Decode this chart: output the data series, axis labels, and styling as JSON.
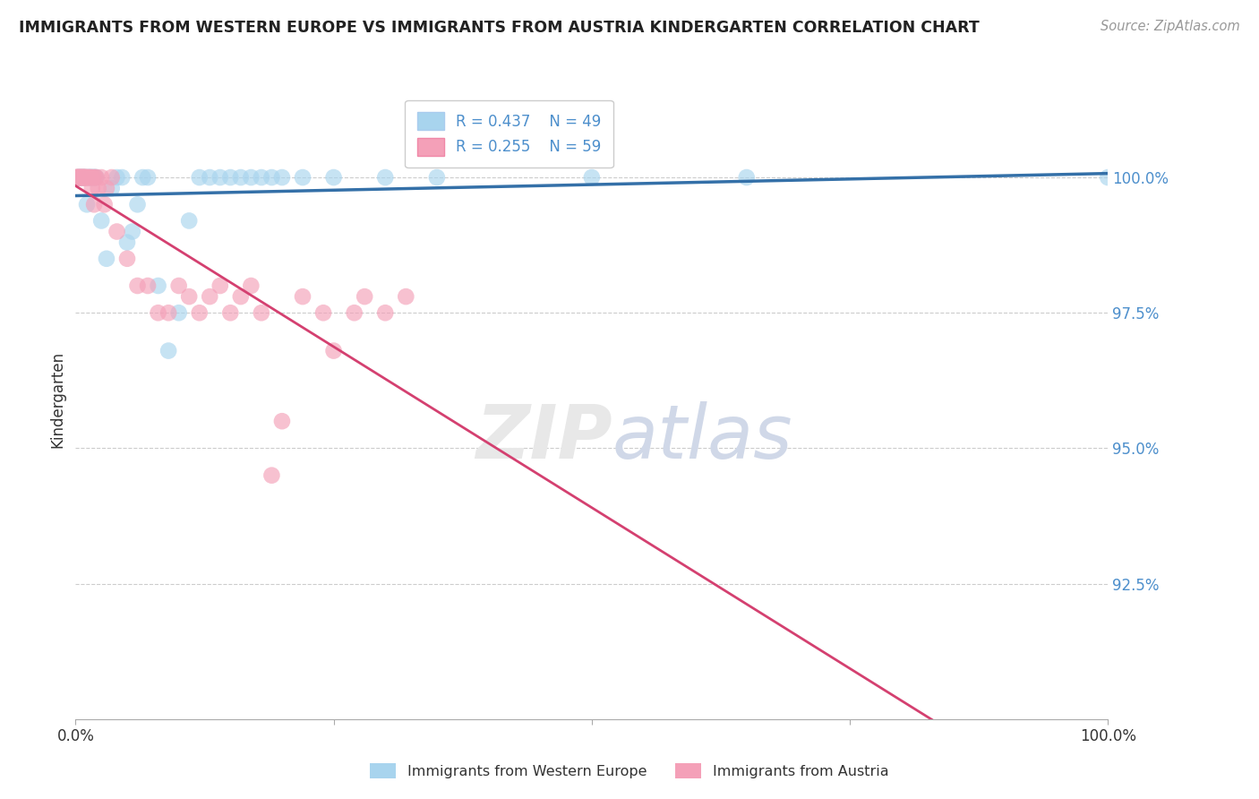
{
  "title": "IMMIGRANTS FROM WESTERN EUROPE VS IMMIGRANTS FROM AUSTRIA KINDERGARTEN CORRELATION CHART",
  "source": "Source: ZipAtlas.com",
  "ylabel": "Kindergarten",
  "xlim": [
    0.0,
    100.0
  ],
  "ylim": [
    90.0,
    101.8
  ],
  "yticks": [
    92.5,
    95.0,
    97.5,
    100.0
  ],
  "ytick_labels": [
    "92.5%",
    "95.0%",
    "97.5%",
    "100.0%"
  ],
  "xtick_labels": [
    "0.0%",
    "100.0%"
  ],
  "xticks": [
    0.0,
    100.0
  ],
  "blue_R": 0.437,
  "blue_N": 49,
  "pink_R": 0.255,
  "pink_N": 59,
  "blue_color": "#a8d4ee",
  "pink_color": "#f4a0b8",
  "blue_line_color": "#3470a8",
  "pink_line_color": "#d44070",
  "legend_label_blue": "Immigrants from Western Europe",
  "legend_label_pink": "Immigrants from Austria",
  "watermark_zip": "ZIP",
  "watermark_atlas": "atlas",
  "blue_x": [
    0.2,
    0.3,
    0.4,
    0.5,
    0.6,
    0.7,
    0.8,
    0.9,
    1.0,
    1.1,
    1.2,
    1.3,
    1.4,
    1.5,
    1.6,
    1.7,
    1.8,
    1.9,
    2.0,
    2.5,
    3.0,
    3.5,
    4.0,
    4.5,
    5.0,
    5.5,
    6.0,
    6.5,
    7.0,
    8.0,
    9.0,
    10.0,
    11.0,
    12.0,
    13.0,
    14.0,
    15.0,
    16.0,
    17.0,
    18.0,
    19.0,
    20.0,
    22.0,
    25.0,
    30.0,
    35.0,
    50.0,
    65.0,
    100.0
  ],
  "blue_y": [
    100.0,
    100.0,
    100.0,
    100.0,
    100.0,
    100.0,
    100.0,
    100.0,
    100.0,
    99.5,
    100.0,
    100.0,
    100.0,
    100.0,
    100.0,
    100.0,
    100.0,
    100.0,
    100.0,
    99.2,
    98.5,
    99.8,
    100.0,
    100.0,
    98.8,
    99.0,
    99.5,
    100.0,
    100.0,
    98.0,
    96.8,
    97.5,
    99.2,
    100.0,
    100.0,
    100.0,
    100.0,
    100.0,
    100.0,
    100.0,
    100.0,
    100.0,
    100.0,
    100.0,
    100.0,
    100.0,
    100.0,
    100.0,
    100.0
  ],
  "pink_x": [
    0.05,
    0.1,
    0.15,
    0.2,
    0.25,
    0.3,
    0.35,
    0.4,
    0.45,
    0.5,
    0.55,
    0.6,
    0.65,
    0.7,
    0.75,
    0.8,
    0.85,
    0.9,
    0.95,
    1.0,
    1.1,
    1.2,
    1.3,
    1.4,
    1.5,
    1.6,
    1.7,
    1.8,
    1.9,
    2.0,
    2.2,
    2.5,
    2.8,
    3.0,
    3.5,
    4.0,
    5.0,
    6.0,
    7.0,
    8.0,
    9.0,
    10.0,
    11.0,
    12.0,
    13.0,
    14.0,
    15.0,
    16.0,
    17.0,
    18.0,
    19.0,
    20.0,
    22.0,
    24.0,
    25.0,
    27.0,
    28.0,
    30.0,
    32.0
  ],
  "pink_y": [
    100.0,
    100.0,
    100.0,
    100.0,
    100.0,
    100.0,
    100.0,
    100.0,
    100.0,
    100.0,
    100.0,
    100.0,
    100.0,
    100.0,
    100.0,
    100.0,
    100.0,
    100.0,
    100.0,
    100.0,
    100.0,
    100.0,
    100.0,
    100.0,
    100.0,
    99.8,
    100.0,
    99.5,
    100.0,
    100.0,
    99.8,
    100.0,
    99.5,
    99.8,
    100.0,
    99.0,
    98.5,
    98.0,
    98.0,
    97.5,
    97.5,
    98.0,
    97.8,
    97.5,
    97.8,
    98.0,
    97.5,
    97.8,
    98.0,
    97.5,
    94.5,
    95.5,
    97.8,
    97.5,
    96.8,
    97.5,
    97.8,
    97.5,
    97.8
  ]
}
